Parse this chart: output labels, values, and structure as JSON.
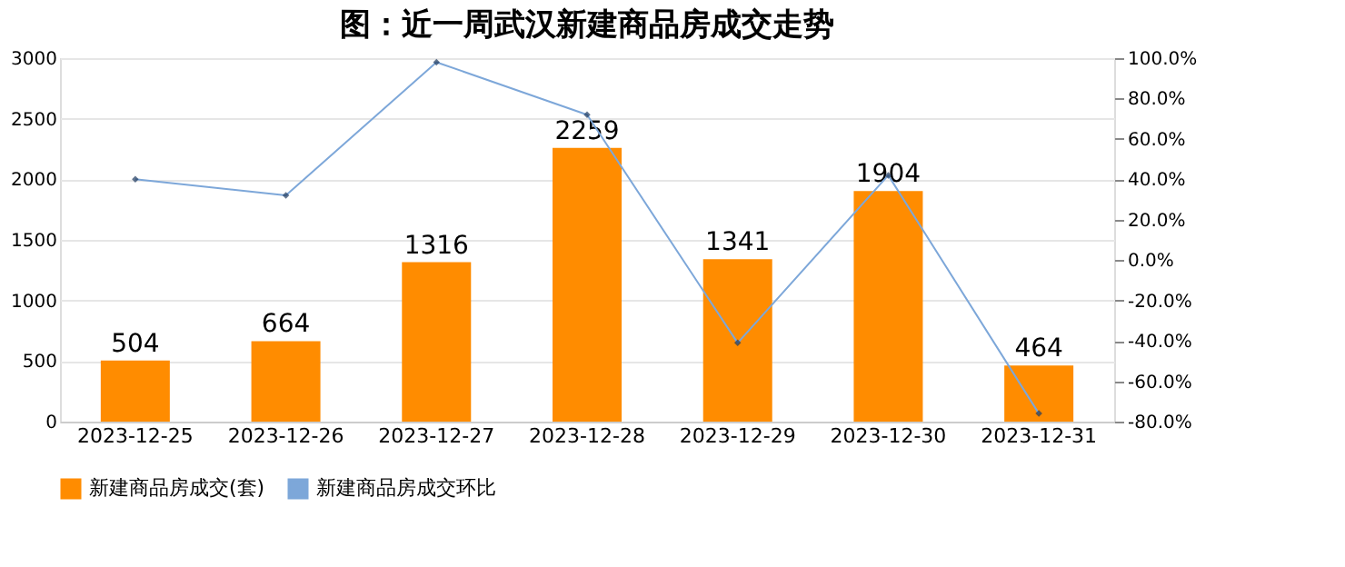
{
  "chart_data": {
    "type": "bar",
    "title": "图：近一周武汉新建商品房成交走势",
    "categories": [
      "2023-12-25",
      "2023-12-26",
      "2023-12-27",
      "2023-12-28",
      "2023-12-29",
      "2023-12-30",
      "2023-12-31"
    ],
    "series": [
      {
        "name": "新建商品房成交(套)",
        "color": "#ff8c00",
        "values": [
          504,
          664,
          1316,
          2259,
          1341,
          1904,
          464
        ],
        "data_labels": true
      },
      {
        "name": "新建商品房成交环比",
        "type": "line",
        "axis": "y2",
        "color": "#7da7d9",
        "marker": "diamond",
        "values": [
          40,
          32,
          98,
          72,
          -41,
          42,
          -76
        ]
      }
    ],
    "ylim": [
      0,
      3000
    ],
    "yticks": [
      0,
      500,
      1000,
      1500,
      2000,
      2500,
      3000
    ],
    "y2lim": [
      -80,
      100
    ],
    "y2ticks": [
      {
        "value": -80,
        "label": "-80.0%"
      },
      {
        "value": -60,
        "label": "-60.0%"
      },
      {
        "value": -40,
        "label": "-40.0%"
      },
      {
        "value": -20,
        "label": "-20.0%"
      },
      {
        "value": 0,
        "label": "0.0%"
      },
      {
        "value": 20,
        "label": "20.0%"
      },
      {
        "value": 40,
        "label": "40.0%"
      },
      {
        "value": 60,
        "label": "60.0%"
      },
      {
        "value": 80,
        "label": "80.0%"
      },
      {
        "value": 100,
        "label": "100.0%"
      }
    ],
    "grid": "y",
    "legend": "bottom"
  }
}
